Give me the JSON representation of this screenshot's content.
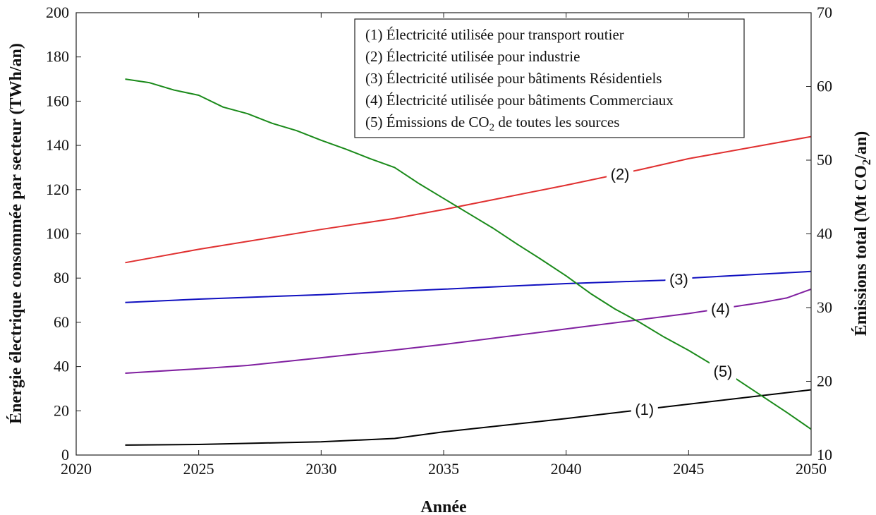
{
  "chart_data": {
    "type": "line",
    "xlabel": "Année",
    "ylabel_left": "Énergie électrique consommée par secteur (TWh/an)",
    "ylabel_right_prefix": "Émissions total  (Mt CO",
    "ylabel_right_sub": "2",
    "ylabel_right_suffix": "/an)",
    "xlim": [
      2020,
      2050
    ],
    "ylim_left": [
      0,
      200
    ],
    "ylim_right": [
      10,
      70
    ],
    "x_ticks": [
      2020,
      2025,
      2030,
      2035,
      2040,
      2045,
      2050
    ],
    "y_ticks_left": [
      0,
      20,
      40,
      60,
      80,
      100,
      120,
      140,
      160,
      180,
      200
    ],
    "y_ticks_right": [
      10,
      20,
      30,
      40,
      50,
      60,
      70
    ],
    "legend_position": "top-right",
    "series": [
      {
        "id": "s1",
        "label": "(1)",
        "name": "Électricité utilisée pour transport routier",
        "color": "#000000",
        "axis": "left",
        "x": [
          2022,
          2025,
          2030,
          2033,
          2035,
          2040,
          2045,
          2050
        ],
        "values": [
          4.5,
          4.8,
          6,
          7.5,
          10.5,
          16.5,
          23,
          29.5
        ],
        "label_at": 2043.2
      },
      {
        "id": "s2",
        "label": "(2)",
        "name": "Électricité utilisée pour industrie",
        "color": "#e03030",
        "axis": "left",
        "x": [
          2022,
          2025,
          2030,
          2033,
          2035,
          2040,
          2043,
          2045,
          2050
        ],
        "values": [
          87,
          93,
          102,
          107,
          111,
          122,
          129,
          134,
          144
        ],
        "label_at": 2042.2
      },
      {
        "id": "s3",
        "label": "(3)",
        "name": "Électricité utilisée pour bâtiments Résidentiels",
        "color": "#1010c0",
        "axis": "left",
        "x": [
          2022,
          2025,
          2030,
          2035,
          2040,
          2044,
          2045,
          2050
        ],
        "values": [
          69,
          70.5,
          72.5,
          75,
          77.5,
          79,
          80,
          83
        ],
        "label_at": 2044.6
      },
      {
        "id": "s4",
        "label": "(4)",
        "name": "Électricité utilisée pour bâtiments Commerciaux",
        "color": "#8020a0",
        "axis": "left",
        "x": [
          2022,
          2025,
          2027,
          2030,
          2033,
          2035,
          2040,
          2045,
          2048,
          2049,
          2050
        ],
        "values": [
          37,
          39,
          40.5,
          44,
          47.5,
          50,
          57,
          64,
          69,
          71,
          75
        ],
        "label_at": 2046.3
      },
      {
        "id": "s5",
        "label": "(5)",
        "name": "Émissions de CO₂ de toutes les sources",
        "color": "#1a8a1a",
        "axis": "right",
        "x": [
          2022,
          2023,
          2024,
          2025,
          2026,
          2027,
          2028,
          2029,
          2030,
          2031,
          2032,
          2033,
          2034,
          2035,
          2036,
          2037,
          2038,
          2039,
          2040,
          2041,
          2042,
          2043,
          2044,
          2045,
          2046,
          2047,
          2048,
          2049,
          2050
        ],
        "values": [
          61,
          60.5,
          59.5,
          58.8,
          57.2,
          56.3,
          55,
          54,
          52.7,
          51.5,
          50.2,
          49,
          46.8,
          44.8,
          42.8,
          40.8,
          38.6,
          36.5,
          34.3,
          31.9,
          29.8,
          28,
          26,
          24.2,
          22.2,
          20.2,
          18,
          15.8,
          13.5
        ],
        "label_at": 2046.4
      }
    ],
    "legend": {
      "entries": [
        "(1) Électricité utilisée pour transport routier",
        "(2) Électricité utilisée pour industrie",
        "(3) Électricité utilisée pour bâtiments Résidentiels",
        "(4) Électricité utilisée pour bâtiments Commerciaux"
      ],
      "last_prefix": "(5) Émissions de CO",
      "last_sub": "2",
      "last_suffix": " de toutes les sources"
    }
  }
}
